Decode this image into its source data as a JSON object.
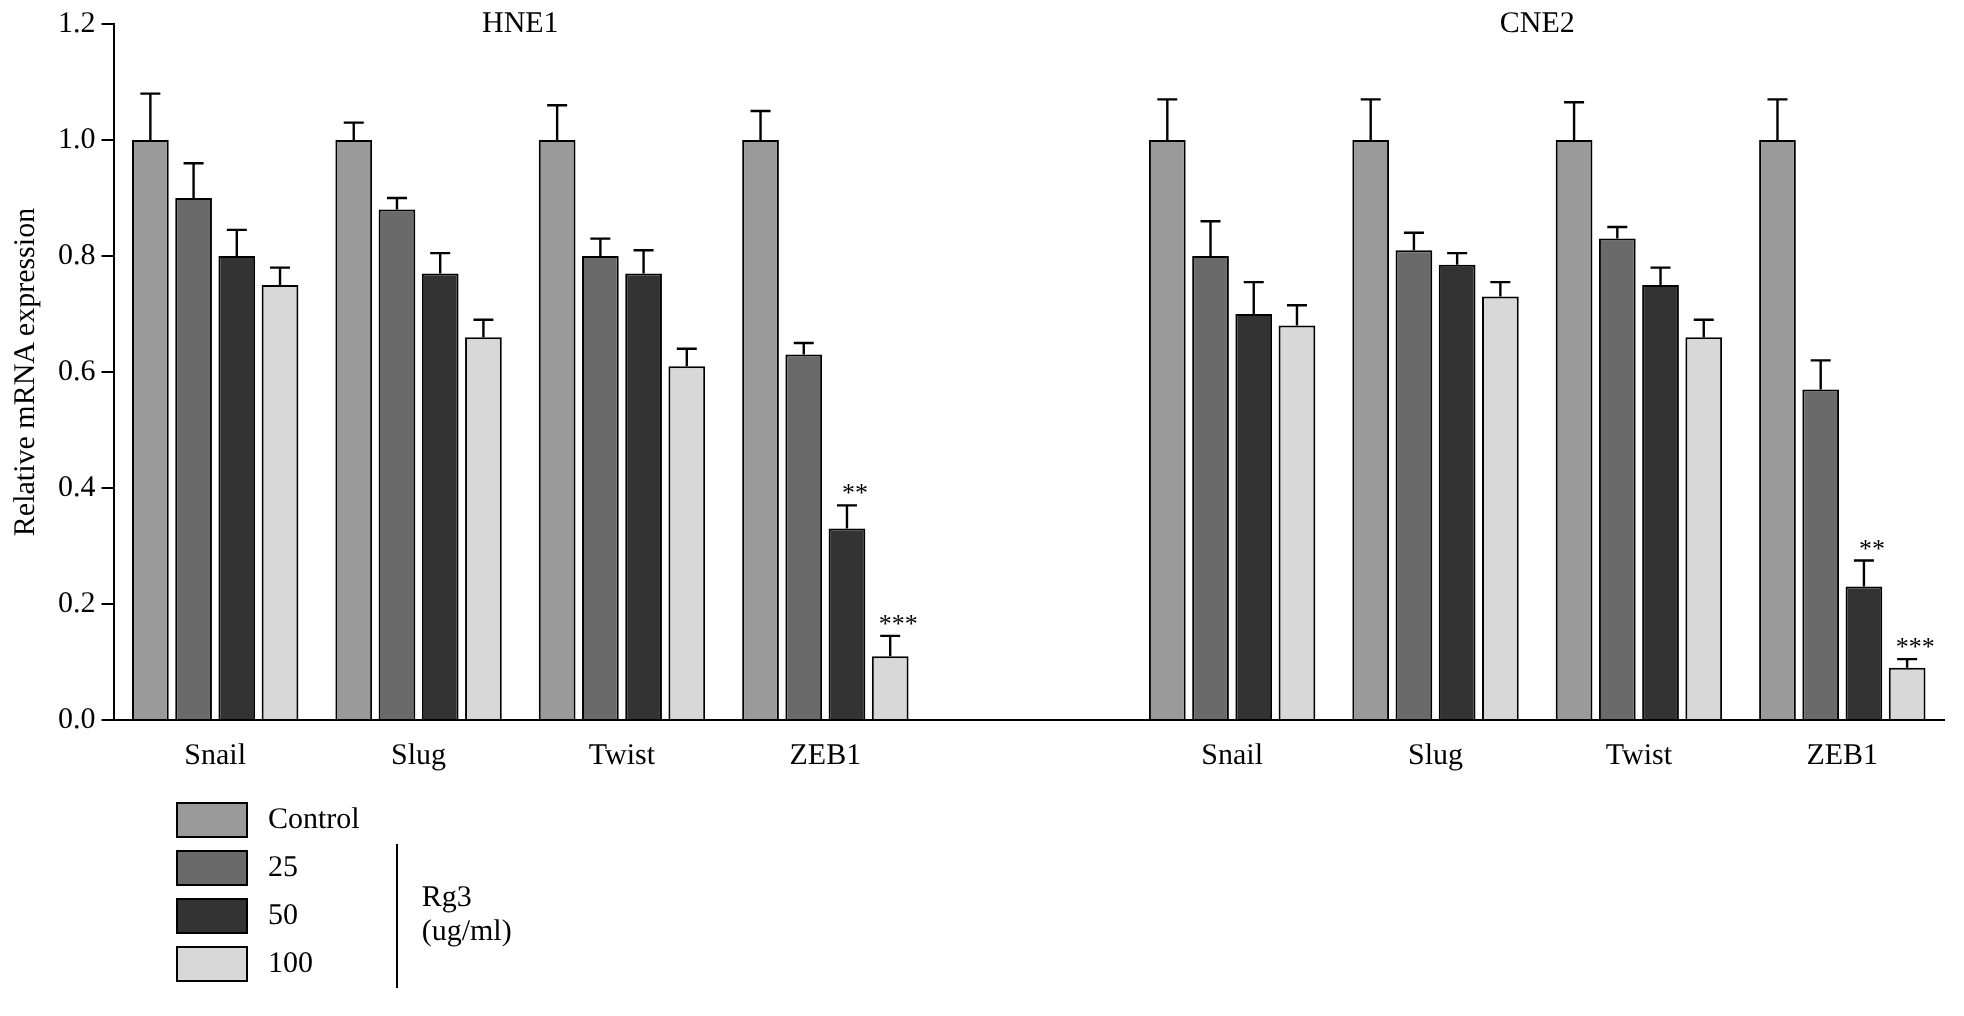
{
  "chart_data": {
    "type": "bar",
    "ylabel": "Relative mRNA expression",
    "legend_title": "Rg3 (ug/ml)",
    "categories": [
      "Snail",
      "Slug",
      "Twist",
      "ZEB1",
      null,
      "Snail",
      "Slug",
      "Twist",
      "ZEB1"
    ],
    "series": [
      {
        "name": "Control",
        "color": "#9a9a9a",
        "values": [
          1.0,
          1.0,
          1.0,
          1.0,
          null,
          1.0,
          1.0,
          1.0,
          1.0
        ],
        "errors": [
          [
            1.0,
            1.08
          ],
          [
            1.0,
            1.03
          ],
          [
            1.0,
            1.06
          ],
          [
            1.0,
            1.05
          ],
          null,
          [
            1.0,
            1.07
          ],
          [
            1.0,
            1.07
          ],
          [
            1.0,
            1.065
          ],
          [
            1.0,
            1.07
          ]
        ]
      },
      {
        "name": "25",
        "color": "#6a6a6a",
        "values": [
          0.9,
          0.88,
          0.8,
          0.63,
          null,
          0.8,
          0.81,
          0.83,
          0.57
        ],
        "errors": [
          [
            0.9,
            0.96
          ],
          [
            0.88,
            0.9
          ],
          [
            0.8,
            0.83
          ],
          [
            0.63,
            0.65
          ],
          null,
          [
            0.8,
            0.86
          ],
          [
            0.81,
            0.84
          ],
          [
            0.83,
            0.85
          ],
          [
            0.57,
            0.62
          ]
        ]
      },
      {
        "name": "50",
        "color": "#333333",
        "values": [
          0.8,
          0.77,
          0.77,
          0.33,
          null,
          0.7,
          0.785,
          0.75,
          0.23
        ],
        "errors": [
          [
            0.8,
            0.845
          ],
          [
            0.77,
            0.805
          ],
          [
            0.77,
            0.81
          ],
          [
            0.33,
            0.37
          ],
          null,
          [
            0.7,
            0.755
          ],
          [
            0.785,
            0.805
          ],
          [
            0.75,
            0.78
          ],
          [
            0.23,
            0.275
          ]
        ],
        "value_labels": [
          null,
          null,
          null,
          "**",
          null,
          null,
          null,
          null,
          "**"
        ]
      },
      {
        "name": "100",
        "color": "#d8d8d8",
        "values": [
          0.75,
          0.66,
          0.61,
          0.11,
          null,
          0.68,
          0.73,
          0.66,
          0.09
        ],
        "errors": [
          [
            0.75,
            0.78
          ],
          [
            0.66,
            0.69
          ],
          [
            0.61,
            0.64
          ],
          [
            0.11,
            0.145
          ],
          null,
          [
            0.68,
            0.715
          ],
          [
            0.73,
            0.755
          ],
          [
            0.66,
            0.69
          ],
          [
            0.09,
            0.105
          ]
        ],
        "value_labels": [
          null,
          null,
          null,
          "***",
          null,
          null,
          null,
          null,
          "***"
        ]
      }
    ],
    "annotations": [
      "HNE1",
      "CNE2"
    ],
    "ylim": [
      0,
      1.2
    ],
    "yticks": [
      {
        "value": 0,
        "label": "0.0"
      },
      {
        "value": 0.2,
        "label": "0.2"
      },
      {
        "value": 0.4,
        "label": "0.4"
      },
      {
        "value": 0.6,
        "label": "0.6"
      },
      {
        "value": 0.8,
        "label": "0.8"
      },
      {
        "value": 1.0,
        "label": "1.0"
      },
      {
        "value": 1.2,
        "label": "1.2"
      }
    ],
    "grid": false,
    "legend": "bottom left"
  }
}
